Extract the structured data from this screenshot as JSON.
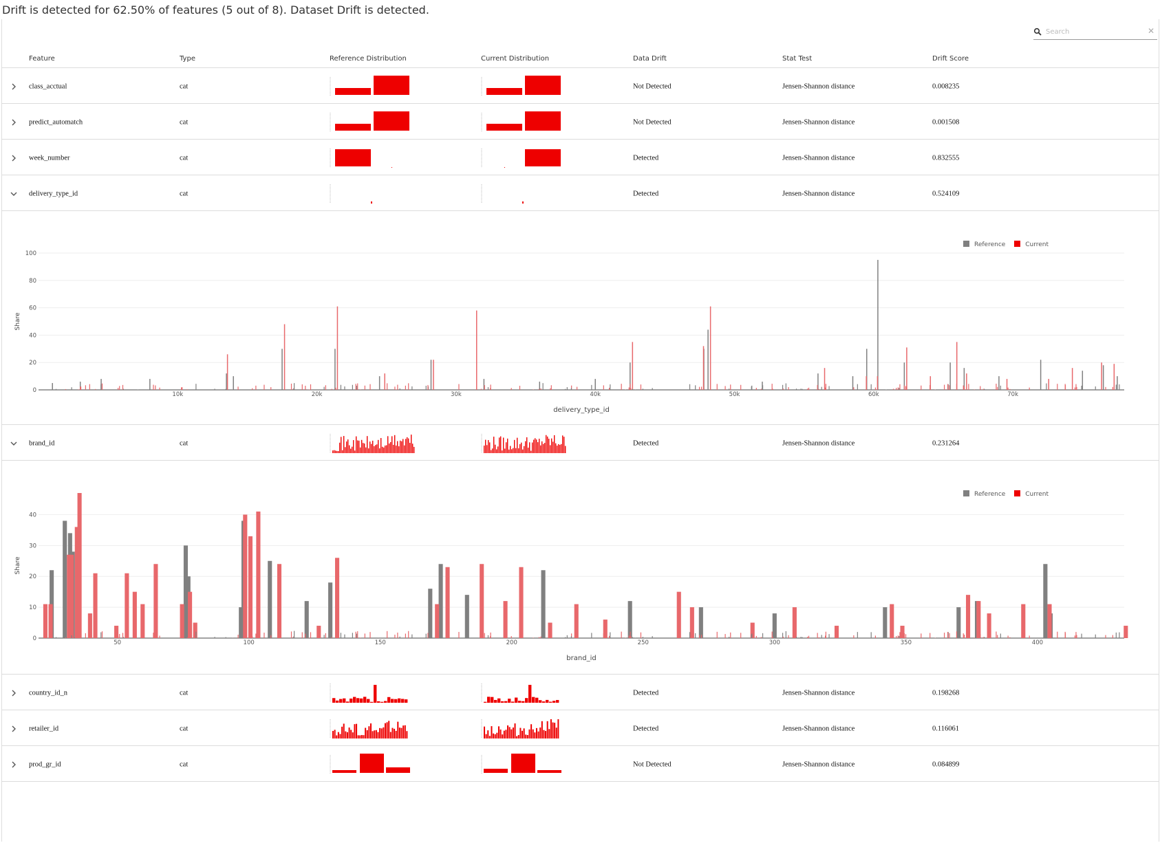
{
  "summary": "Drift is detected for 62.50% of features (5 out of 8). Dataset Drift is detected.",
  "search": {
    "placeholder": "Search",
    "clear_icon": "close-icon"
  },
  "colors": {
    "current": "#ee0000",
    "reference": "#808080",
    "current_light": "#e8686b",
    "grid": "#eeeeee"
  },
  "columns": [
    "Feature",
    "Type",
    "Reference Distribution",
    "Current Distribution",
    "Data Drift",
    "Stat Test",
    "Drift Score"
  ],
  "rows": [
    {
      "feature": "class_acctual",
      "type": "cat",
      "drift": "Not Detected",
      "stat_test": "Jensen-Shannon distance",
      "score": "0.008235",
      "expanded": false
    },
    {
      "feature": "predict_automatch",
      "type": "cat",
      "drift": "Not Detected",
      "stat_test": "Jensen-Shannon distance",
      "score": "0.001508",
      "expanded": false
    },
    {
      "feature": "week_number",
      "type": "cat",
      "drift": "Detected",
      "stat_test": "Jensen-Shannon distance",
      "score": "0.832555",
      "expanded": false
    },
    {
      "feature": "delivery_type_id",
      "type": "cat",
      "drift": "Detected",
      "stat_test": "Jensen-Shannon distance",
      "score": "0.524109",
      "expanded": true
    },
    {
      "feature": "brand_id",
      "type": "cat",
      "drift": "Detected",
      "stat_test": "Jensen-Shannon distance",
      "score": "0.231264",
      "expanded": true
    },
    {
      "feature": "country_id_n",
      "type": "cat",
      "drift": "Detected",
      "stat_test": "Jensen-Shannon distance",
      "score": "0.198268",
      "expanded": false
    },
    {
      "feature": "retailer_id",
      "type": "cat",
      "drift": "Detected",
      "stat_test": "Jensen-Shannon distance",
      "score": "0.116061",
      "expanded": false
    },
    {
      "feature": "prod_gr_id",
      "type": "cat",
      "drift": "Not Detected",
      "stat_test": "Jensen-Shannon distance",
      "score": "0.084899",
      "expanded": false
    }
  ],
  "legend": {
    "reference": "Reference",
    "current": "Current"
  },
  "chart_data": [
    {
      "type": "bar",
      "feature": "delivery_type_id",
      "xlabel": "delivery_type_id",
      "ylabel": "Share",
      "xlim": [
        0,
        78000
      ],
      "ylim": [
        0,
        100
      ],
      "xticks": [
        10000,
        20000,
        30000,
        40000,
        50000,
        60000,
        70000
      ],
      "xtick_labels": [
        "10k",
        "20k",
        "30k",
        "40k",
        "50k",
        "60k",
        "70k"
      ],
      "yticks": [
        0,
        20,
        40,
        60,
        80,
        100
      ],
      "legend_position": "top-right",
      "series": [
        {
          "name": "Reference",
          "x": [
            1000,
            3000,
            4500,
            8000,
            13500,
            14000,
            17500,
            21300,
            24500,
            28200,
            32000,
            36000,
            40000,
            42500,
            47800,
            48100,
            52000,
            56000,
            58500,
            59500,
            60300,
            62200,
            65500,
            66500,
            69000,
            72000,
            75000,
            76500,
            77500
          ],
          "y": [
            5,
            6,
            8,
            8,
            12,
            10,
            30,
            30,
            10,
            22,
            8,
            6,
            8,
            20,
            30,
            44,
            6,
            12,
            10,
            30,
            95,
            20,
            20,
            16,
            10,
            22,
            14,
            18,
            10
          ]
        },
        {
          "name": "Current",
          "x": [
            13500,
            17600,
            21400,
            24800,
            28300,
            31400,
            42600,
            47700,
            48200,
            56400,
            59400,
            60200,
            62300,
            64000,
            65900,
            66600,
            69500,
            72500,
            74200,
            76300,
            77200
          ],
          "y": [
            26,
            48,
            61,
            12,
            22,
            58,
            35,
            32,
            61,
            16,
            10,
            10,
            31,
            10,
            35,
            12,
            8,
            8,
            16,
            20,
            19
          ]
        }
      ]
    },
    {
      "type": "bar",
      "feature": "brand_id",
      "xlabel": "brand_id",
      "ylabel": "Share",
      "xlim": [
        20,
        433
      ],
      "ylim": [
        0,
        47
      ],
      "xticks": [
        50,
        100,
        150,
        200,
        250,
        300,
        350,
        400
      ],
      "yticks": [
        0,
        10,
        20,
        30,
        40
      ],
      "legend_position": "top-right",
      "series": [
        {
          "name": "Reference",
          "x": [
            25,
            30,
            32,
            33,
            35,
            76,
            77,
            97,
            98,
            108,
            122,
            131,
            169,
            173,
            183,
            212,
            245,
            272,
            300,
            342,
            370,
            377,
            403,
            405
          ],
          "y": [
            22,
            38,
            34,
            28,
            12,
            30,
            20,
            10,
            38,
            25,
            12,
            18,
            16,
            24,
            14,
            22,
            12,
            10,
            8,
            10,
            10,
            12,
            24,
            8
          ]
        },
        {
          "name": "Current",
          "x": [
            21,
            23,
            30,
            31,
            33,
            34,
            38,
            40,
            48,
            52,
            55,
            58,
            63,
            73,
            76,
            78,
            97,
            99,
            102,
            110,
            125,
            132,
            170,
            174,
            187,
            196,
            202,
            213,
            223,
            234,
            262,
            267,
            290,
            306,
            322,
            343,
            347,
            372,
            376,
            380,
            393,
            403,
            432
          ],
          "y": [
            11,
            11,
            27,
            27,
            36,
            47,
            8,
            21,
            4,
            21,
            15,
            11,
            24,
            11,
            15,
            5,
            40,
            33,
            41,
            24,
            4,
            26,
            11,
            23,
            24,
            12,
            23,
            5,
            11,
            6,
            15,
            10,
            5,
            10,
            4,
            11,
            4,
            14,
            12,
            8,
            11,
            11,
            4
          ]
        }
      ]
    }
  ]
}
